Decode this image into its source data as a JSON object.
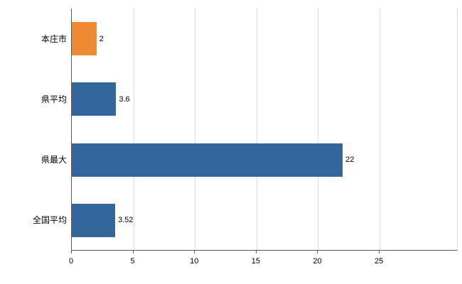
{
  "chart_data": {
    "type": "bar",
    "orientation": "horizontal",
    "title": "",
    "xlabel": "",
    "ylabel": "",
    "categories": [
      "本庄市",
      "県平均",
      "県最大",
      "全国平均"
    ],
    "values": [
      2,
      3.6,
      22,
      3.52
    ],
    "value_labels": [
      "2",
      "3.6",
      "22",
      "3.52"
    ],
    "bar_colors": [
      "#ed8a33",
      "#33679b",
      "#33679b",
      "#33679b"
    ],
    "bar_border_color": "#1f4e79",
    "x_ticks": [
      0,
      5,
      10,
      15,
      20,
      25
    ],
    "x_tick_labels": [
      "0",
      "5",
      "10",
      "15",
      "20",
      "25"
    ],
    "xlim": [
      0,
      31.4
    ],
    "grid": true,
    "gridline_color": "#d9d9d9",
    "axis_color": "#595959",
    "legend_position": "none",
    "background_color": "#ffffff"
  }
}
